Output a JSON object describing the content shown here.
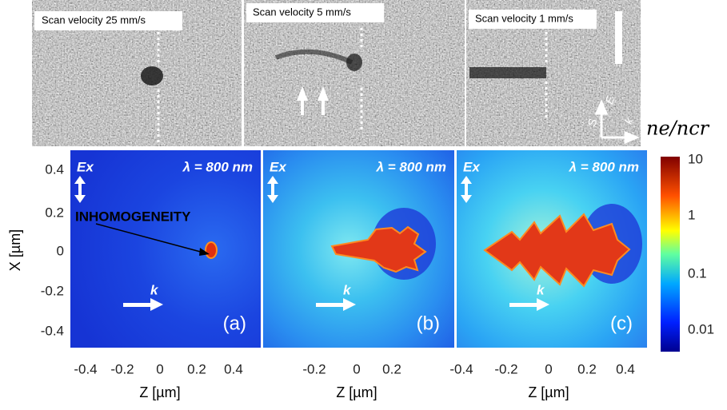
{
  "top_panels": [
    "Scan velocity 25 mm/s",
    "Scan velocity 5 mm/s",
    "Scan velocity 1 mm/s"
  ],
  "orientation": {
    "s": "S",
    "e": "E",
    "k": "k"
  },
  "annotation": "INHOMOGENEITY",
  "sim_panels": [
    {
      "field": "Ex",
      "wavelength": "λ = 800 nm",
      "wave": "k",
      "tag": "(a)",
      "x_label": "Z [µm]",
      "x_ticks": [
        "-0.4",
        "-0.2",
        "0",
        "0.2",
        "0.4"
      ]
    },
    {
      "field": "Ex",
      "wavelength": "λ = 800 nm",
      "wave": "k",
      "tag": "(b)",
      "x_label": "Z [µm]",
      "x_ticks": [
        "-0.2",
        "0",
        "0.2"
      ]
    },
    {
      "field": "Ex",
      "wavelength": "λ = 800 nm",
      "wave": "k",
      "tag": "(c)",
      "x_label": "Z [µm]",
      "x_ticks": [
        "-0.4",
        "-0.2",
        "0",
        "0.2",
        "0.4"
      ]
    }
  ],
  "y_axis": {
    "label": "X [µm]",
    "ticks": [
      "0.4",
      "0.2",
      "0",
      "-0.2",
      "-0.4"
    ]
  },
  "colorbar": {
    "title": "ne/ncr",
    "ticks": [
      "10",
      "1",
      "0.1",
      "0.01"
    ]
  }
}
